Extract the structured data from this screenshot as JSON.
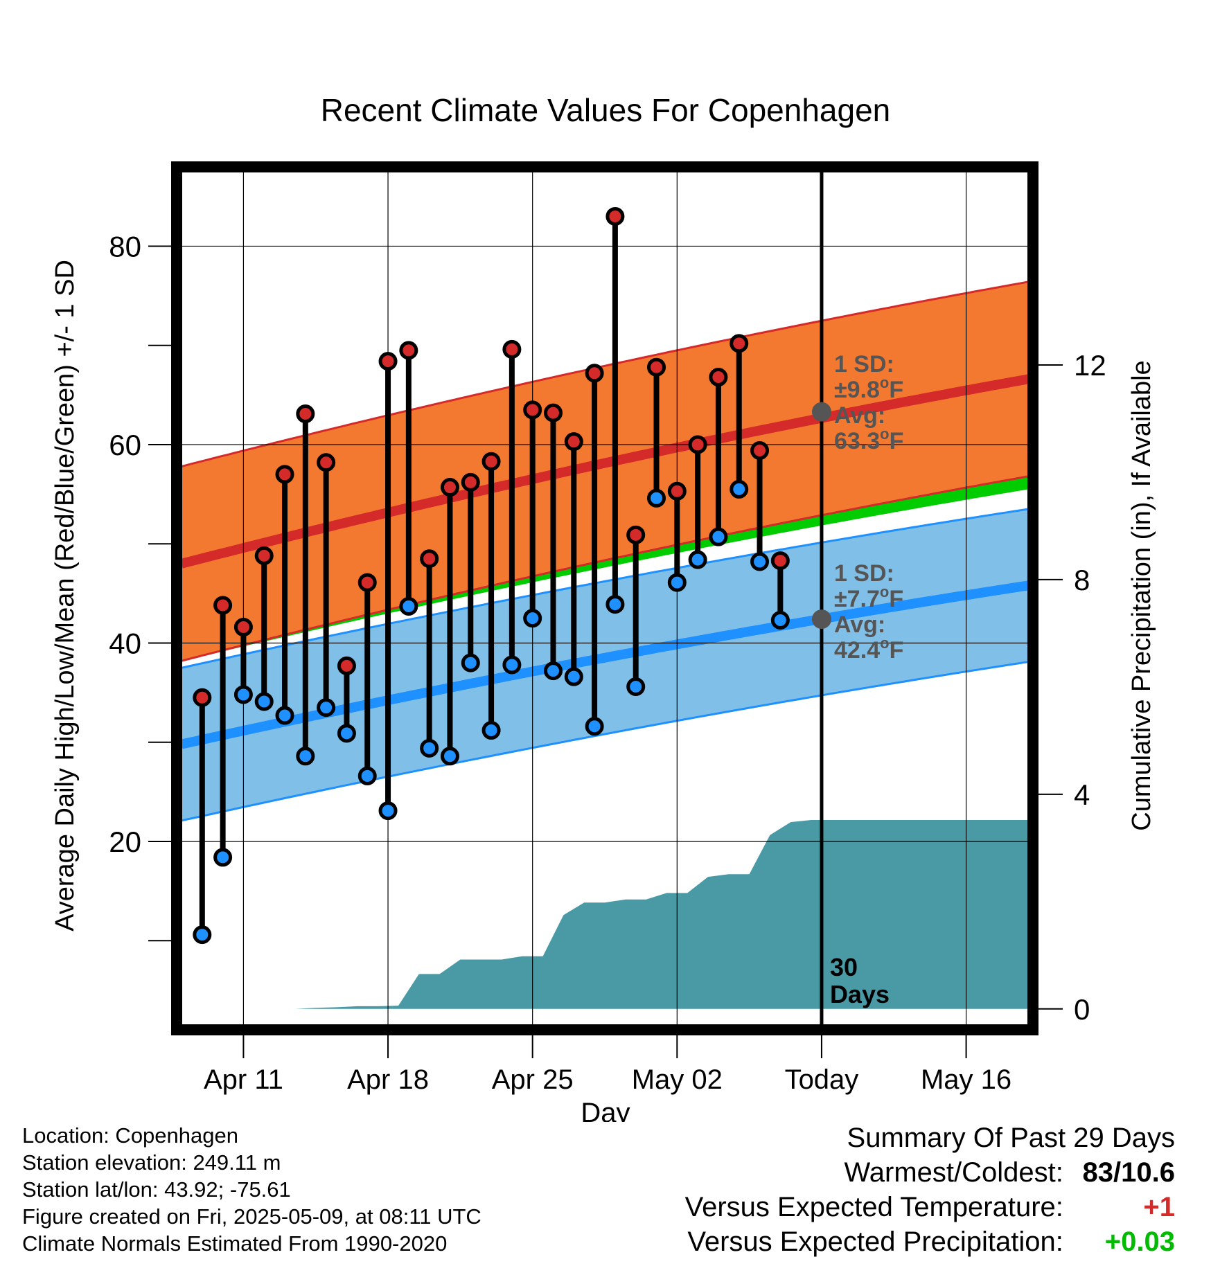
{
  "chart_data": {
    "type": "line",
    "title": "Recent Climate Values For Copenhagen",
    "xlabel": "Day",
    "ylabel": "Average Daily High/Low/Mean (Red/Blue/Green) +/- 1 SD",
    "y2label": "Cumulative Precipitation (in), If Available",
    "ylim": [
      1.5,
      87.5
    ],
    "y2lim": [
      -0.3,
      15.6
    ],
    "yticks": [
      "20",
      "40",
      "60",
      "80"
    ],
    "y2ticks": [
      "0",
      "4",
      "8",
      "12"
    ],
    "xlim": [
      0,
      41
    ],
    "x_ticks": [
      {
        "x": 3,
        "label": "Apr 11"
      },
      {
        "x": 10,
        "label": "Apr 18"
      },
      {
        "x": 17,
        "label": "Apr 25"
      },
      {
        "x": 24,
        "label": "May 02"
      },
      {
        "x": 31,
        "label": "Today"
      },
      {
        "x": 38,
        "label": "May 16"
      }
    ],
    "today_x": 31,
    "today_label": [
      "30",
      "Days"
    ],
    "grid": true,
    "daily_high": [
      34.5,
      43.8,
      41.6,
      48.8,
      57.0,
      63.1,
      58.2,
      37.7,
      46.1,
      68.4,
      69.5,
      48.5,
      55.7,
      56.2,
      58.3,
      69.6,
      63.5,
      63.2,
      60.3,
      67.2,
      83.0,
      50.9,
      67.8,
      55.3,
      60.0,
      66.8,
      70.2,
      59.4,
      48.3
    ],
    "daily_low": [
      10.6,
      18.4,
      34.8,
      34.1,
      32.7,
      28.6,
      33.5,
      30.9,
      26.6,
      23.1,
      43.7,
      29.4,
      28.6,
      38.0,
      31.2,
      37.8,
      42.5,
      37.2,
      36.6,
      31.6,
      43.9,
      35.6,
      54.6,
      46.1,
      48.4,
      50.7,
      55.5,
      48.2,
      42.3
    ],
    "normal_high": {
      "start": 48.0,
      "end": 66.6,
      "sd": 9.8,
      "today_avg": 63.3
    },
    "normal_low": {
      "start": 29.8,
      "end": 45.8,
      "sd": 7.7,
      "today_avg": 42.4
    },
    "normal_mean": {
      "start": 38.9,
      "end": 56.2
    },
    "cumulative_precip": [
      0.0,
      0.0,
      0.0,
      0.0,
      0.0,
      0.0,
      0.02,
      0.03,
      0.05,
      0.05,
      0.06,
      0.65,
      0.65,
      0.92,
      0.92,
      0.92,
      0.98,
      0.98,
      1.75,
      1.98,
      1.98,
      2.04,
      2.04,
      2.16,
      2.16,
      2.46,
      2.51,
      2.51,
      3.24,
      3.48,
      3.52
    ],
    "precip_flat_after": 3.52,
    "colors": {
      "high_band": "#f47930",
      "high_line": "#d42a2a",
      "low_band": "#80c0e8",
      "low_line": "#1e90ff",
      "mean_line": "#00cc00",
      "precip": "#4a9aa5",
      "high_dot": "#d42a2a",
      "low_dot": "#1e90ff",
      "annot": "#555555",
      "warm": "#d42a2a",
      "wet": "#00bb00"
    },
    "annotations": {
      "high": {
        "l1": "1 SD:",
        "l2": "±9.8",
        "l2_sup": "o",
        "l2_end": "F",
        "l3": "Avg:",
        "l4": "63.3",
        "l4_sup": "o",
        "l4_end": "F"
      },
      "low": {
        "l1": "1 SD:",
        "l2": "±7.7",
        "l2_sup": "o",
        "l2_end": "F",
        "l3": "Avg:",
        "l4": "42.4",
        "l4_sup": "o",
        "l4_end": "F"
      }
    }
  },
  "info": {
    "location": "Location: Copenhagen",
    "elevation": "Station elevation: 249.11 m",
    "latlon": "Station lat/lon: 43.92; -75.61",
    "created": "Figure created on Fri, 2025-05-09, at 08:11 UTC",
    "normals": "Climate Normals Estimated From 1990-2020"
  },
  "summary": {
    "heading": "Summary Of Past 29 Days",
    "warm_cold_label": "Warmest/Coldest:",
    "warm_cold_value": "83/10.6",
    "temp_label": "Versus Expected Temperature:",
    "temp_value": "+1",
    "precip_label": "Versus Expected Precipitation:",
    "precip_value": "+0.03"
  }
}
